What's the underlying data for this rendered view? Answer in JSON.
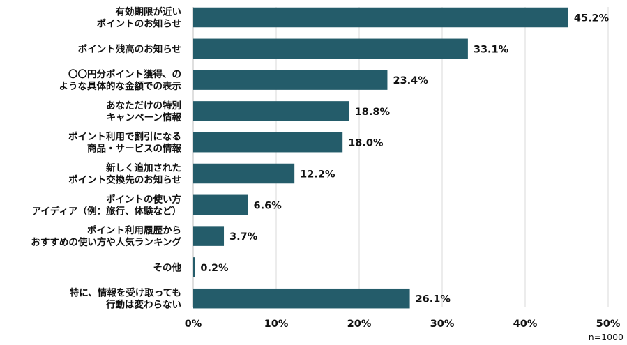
{
  "chart_data": {
    "type": "bar",
    "orientation": "horizontal",
    "categories": [
      [
        "有効期限が近い",
        "ポイントのお知らせ"
      ],
      [
        "ポイント残高のお知らせ"
      ],
      [
        "〇〇円分ポイント獲得、の",
        "ような具体的な金額での表示"
      ],
      [
        "あなただけの特別",
        "キャンペーン情報"
      ],
      [
        "ポイント利用で割引になる",
        "商品・サービスの情報"
      ],
      [
        "新しく追加された",
        "ポイント交換先のお知らせ"
      ],
      [
        "ポイントの使い方",
        "アイディア（例：旅行、体験など）"
      ],
      [
        "ポイント利用履歴から",
        "おすすめの使い方や人気ランキング"
      ],
      [
        "その他"
      ],
      [
        "特に、情報を受け取っても",
        "行動は変わらない"
      ]
    ],
    "values": [
      45.2,
      33.1,
      23.4,
      18.8,
      18.0,
      12.2,
      6.6,
      3.7,
      0.2,
      26.1
    ],
    "value_labels": [
      "45.2%",
      "33.1%",
      "23.4%",
      "18.8%",
      "18.0%",
      "12.2%",
      "6.6%",
      "3.7%",
      "0.2%",
      "26.1%"
    ],
    "xlim": [
      0,
      50
    ],
    "xticks": [
      0,
      10,
      20,
      30,
      40,
      50
    ],
    "xtick_labels": [
      "0%",
      "10%",
      "20%",
      "30%",
      "40%",
      "50%"
    ],
    "grid": "vertical",
    "bar_color": "#245c6a",
    "grid_color": "#d9d9d9",
    "note": "n=1000"
  }
}
